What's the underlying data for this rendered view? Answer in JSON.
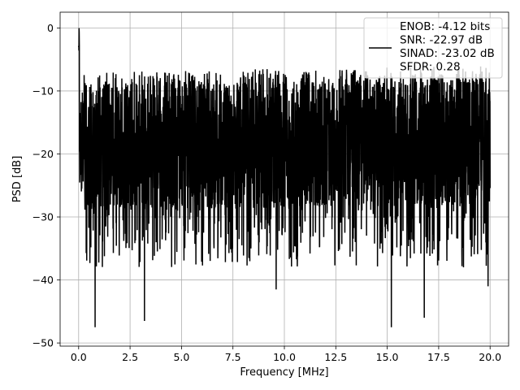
{
  "chart_data": {
    "type": "line",
    "xlabel": "Frequency [MHz]",
    "ylabel": "PSD [dB]",
    "xlim": [
      -0.9,
      20.9
    ],
    "ylim": [
      -50.5,
      2.5
    ],
    "xticks": [
      0.0,
      2.5,
      5.0,
      7.5,
      10.0,
      12.5,
      15.0,
      17.5,
      20.0
    ],
    "xtick_labels": [
      "0.0",
      "2.5",
      "5.0",
      "7.5",
      "10.0",
      "12.5",
      "15.0",
      "17.5",
      "20.0"
    ],
    "yticks": [
      0,
      -10,
      -20,
      -30,
      -40,
      -50
    ],
    "ytick_labels": [
      "0",
      "−10",
      "−20",
      "−30",
      "−40",
      "−50"
    ],
    "grid": true,
    "legend": {
      "placement": "upper right",
      "lines": [
        "ENOB: -4.12 bits",
        "SNR: -22.97 dB",
        "SINAD: -23.02 dB",
        "SFDR: 0.28"
      ]
    },
    "series": [
      {
        "color": "#000000",
        "x_start": 0.0,
        "x_end": 20.0,
        "peak": {
          "x": 0.0,
          "y": 0.0
        },
        "noise_floor_center": -18,
        "noise_upper_envelope": [
          -8,
          -10
        ],
        "notable_minima": [
          {
            "x": 0.8,
            "y": -47.5
          },
          {
            "x": 3.2,
            "y": -46.5
          },
          {
            "x": 9.6,
            "y": -41.5
          },
          {
            "x": 15.2,
            "y": -47.5
          },
          {
            "x": 16.8,
            "y": -46.0
          },
          {
            "x": 19.9,
            "y": -41.0
          }
        ]
      }
    ]
  }
}
